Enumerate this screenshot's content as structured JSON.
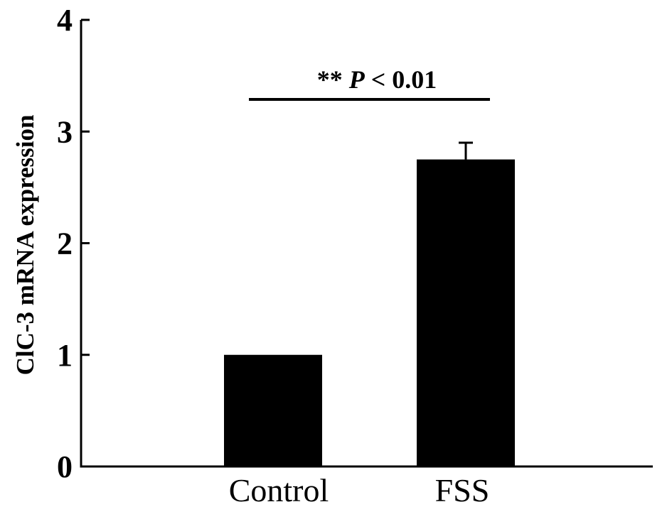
{
  "chart_data": {
    "type": "bar",
    "categories": [
      "Control",
      "FSS"
    ],
    "values": [
      1.0,
      2.75
    ],
    "error_bars": [
      0.0,
      0.15
    ],
    "title": "",
    "xlabel": "",
    "ylabel": "ClC-3 mRNA expression",
    "ylim": [
      0,
      4
    ],
    "yticks": [
      0,
      1,
      2,
      3,
      4
    ],
    "grid": false,
    "bar_color": "#000000",
    "significance": {
      "between": [
        "Control",
        "FSS"
      ],
      "stars": "**",
      "p_symbol": "P",
      "relation": "< 0.01"
    }
  }
}
